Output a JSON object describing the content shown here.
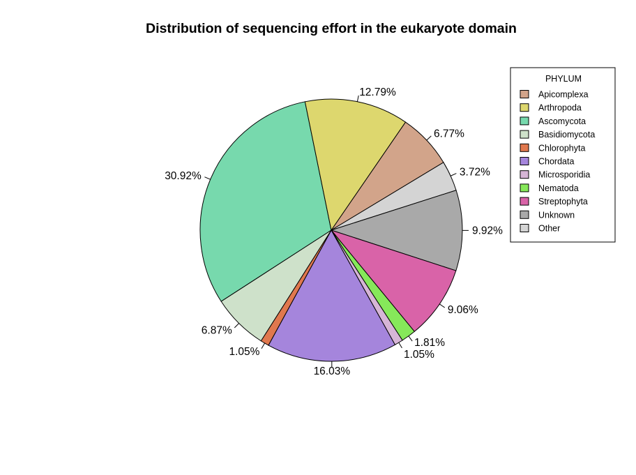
{
  "chart_data": {
    "type": "pie",
    "title": "Distribution of sequencing effort in the eukaryote domain",
    "legend_title": "PHYLUM",
    "legend_position": "right",
    "slices": [
      {
        "label": "Apicomplexa",
        "value": 6.77,
        "display": "6.77%",
        "color": "#d2a48a"
      },
      {
        "label": "Other",
        "value": 3.72,
        "display": "3.72%",
        "color": "#d4d4d4"
      },
      {
        "label": "Unknown",
        "value": 9.92,
        "display": "9.92%",
        "color": "#a9a9a9"
      },
      {
        "label": "Streptophyta",
        "value": 9.06,
        "display": "9.06%",
        "color": "#d963a8"
      },
      {
        "label": "Nematoda",
        "value": 1.81,
        "display": "1.81%",
        "color": "#86e85a"
      },
      {
        "label": "Microsporidia",
        "value": 1.05,
        "display": "1.05%",
        "color": "#d6b5d6"
      },
      {
        "label": "Chordata",
        "value": 16.03,
        "display": "16.03%",
        "color": "#a585dc"
      },
      {
        "label": "Chlorophyta",
        "value": 1.05,
        "display": "1.05%",
        "color": "#e0784e"
      },
      {
        "label": "Basidiomycota",
        "value": 6.87,
        "display": "6.87%",
        "color": "#cee1ca"
      },
      {
        "label": "Ascomycota",
        "value": 30.92,
        "display": "30.92%",
        "color": "#77d9ad"
      },
      {
        "label": "Arthropoda",
        "value": 12.79,
        "display": "12.79%",
        "color": "#ddd76e"
      }
    ],
    "legend_order": [
      "Apicomplexa",
      "Arthropoda",
      "Ascomycota",
      "Basidiomycota",
      "Chlorophyta",
      "Chordata",
      "Microsporidia",
      "Nematoda",
      "Streptophyta",
      "Unknown",
      "Other"
    ]
  }
}
